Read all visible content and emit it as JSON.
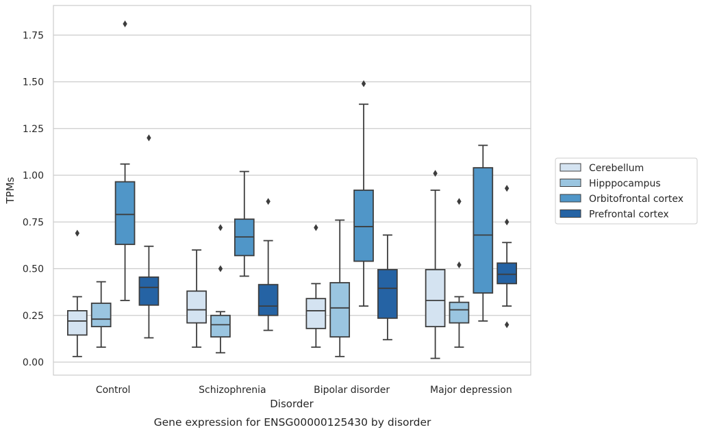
{
  "chart_data": {
    "type": "boxplot",
    "caption": "Gene expression for ENSG00000125430 by disorder",
    "xlabel": "Disorder",
    "ylabel": "TPMs",
    "ylim": [
      -0.07,
      1.9
    ],
    "yticks": [
      0.0,
      0.25,
      0.5,
      0.75,
      1.0,
      1.25,
      1.5,
      1.75
    ],
    "ytick_labels": [
      "0.00",
      "0.25",
      "0.50",
      "0.75",
      "1.00",
      "1.25",
      "1.50",
      "1.75"
    ],
    "grid": "horizontal",
    "legend_position": "outside-right",
    "categories": [
      "Control",
      "Schizophrenia",
      "Bipolar disorder",
      "Major depression"
    ],
    "series": [
      {
        "name": "Cerebellum",
        "color": "#d4e3f1",
        "boxes": [
          {
            "min": 0.03,
            "q1": 0.145,
            "median": 0.22,
            "q3": 0.275,
            "max": 0.35,
            "outliers": [
              0.69
            ]
          },
          {
            "min": 0.08,
            "q1": 0.21,
            "median": 0.28,
            "q3": 0.38,
            "max": 0.6,
            "outliers": []
          },
          {
            "min": 0.08,
            "q1": 0.18,
            "median": 0.275,
            "q3": 0.34,
            "max": 0.42,
            "outliers": [
              0.72
            ]
          },
          {
            "min": 0.02,
            "q1": 0.19,
            "median": 0.33,
            "q3": 0.495,
            "max": 0.92,
            "outliers": [
              1.01
            ]
          }
        ]
      },
      {
        "name": "Hipppocampus",
        "color": "#9ac5e0",
        "boxes": [
          {
            "min": 0.08,
            "q1": 0.19,
            "median": 0.23,
            "q3": 0.315,
            "max": 0.43,
            "outliers": []
          },
          {
            "min": 0.05,
            "q1": 0.135,
            "median": 0.2,
            "q3": 0.25,
            "max": 0.27,
            "outliers": [
              0.5,
              0.72
            ]
          },
          {
            "min": 0.03,
            "q1": 0.135,
            "median": 0.29,
            "q3": 0.425,
            "max": 0.76,
            "outliers": []
          },
          {
            "min": 0.08,
            "q1": 0.21,
            "median": 0.28,
            "q3": 0.32,
            "max": 0.35,
            "outliers": [
              0.52,
              0.86
            ]
          }
        ]
      },
      {
        "name": "Orbitofrontal cortex",
        "color": "#5096c8",
        "boxes": [
          {
            "min": 0.33,
            "q1": 0.63,
            "median": 0.79,
            "q3": 0.965,
            "max": 1.06,
            "outliers": [
              1.81
            ]
          },
          {
            "min": 0.46,
            "q1": 0.57,
            "median": 0.67,
            "q3": 0.765,
            "max": 1.02,
            "outliers": []
          },
          {
            "min": 0.3,
            "q1": 0.54,
            "median": 0.725,
            "q3": 0.92,
            "max": 1.38,
            "outliers": [
              1.49
            ]
          },
          {
            "min": 0.22,
            "q1": 0.37,
            "median": 0.68,
            "q3": 1.04,
            "max": 1.16,
            "outliers": []
          }
        ]
      },
      {
        "name": "Prefrontal cortex",
        "color": "#2563a4",
        "boxes": [
          {
            "min": 0.13,
            "q1": 0.305,
            "median": 0.4,
            "q3": 0.455,
            "max": 0.62,
            "outliers": [
              1.2
            ]
          },
          {
            "min": 0.17,
            "q1": 0.25,
            "median": 0.3,
            "q3": 0.415,
            "max": 0.65,
            "outliers": [
              0.86
            ]
          },
          {
            "min": 0.12,
            "q1": 0.235,
            "median": 0.395,
            "q3": 0.495,
            "max": 0.68,
            "outliers": []
          },
          {
            "min": 0.3,
            "q1": 0.42,
            "median": 0.47,
            "q3": 0.53,
            "max": 0.64,
            "outliers": [
              0.2,
              0.75,
              0.93
            ]
          }
        ]
      }
    ]
  }
}
